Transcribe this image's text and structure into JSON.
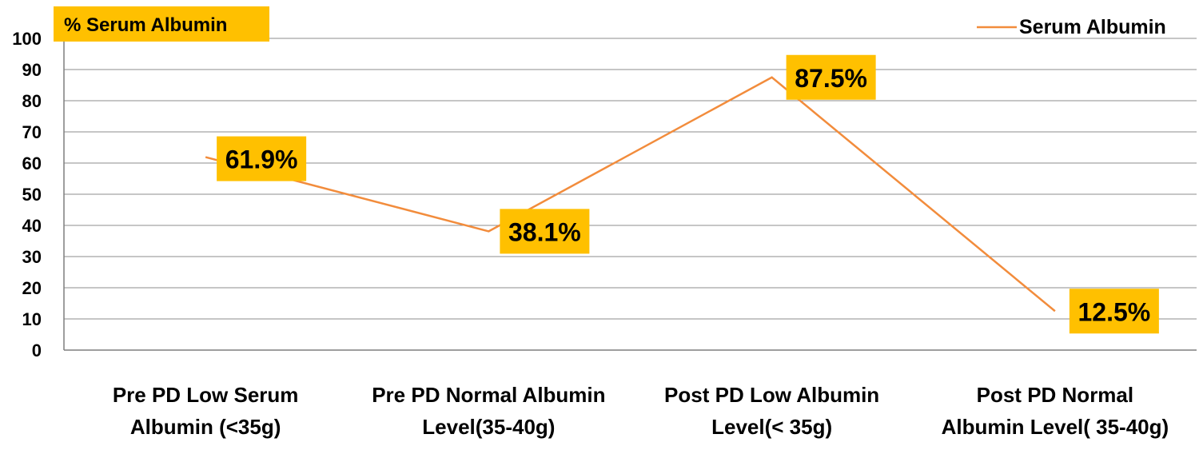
{
  "colors": {
    "line": "#F28C3C",
    "label_bg": "#FFC000",
    "grid": "#8C8C8C",
    "axis": "#7F7F7F"
  },
  "chart_data": {
    "type": "line",
    "title": "",
    "ylabel": "% Serum Albumin",
    "xlabel": "",
    "ylim": [
      0,
      100
    ],
    "yticks": [
      0,
      10,
      20,
      30,
      40,
      50,
      60,
      70,
      80,
      90,
      100
    ],
    "grid": true,
    "legend": "top-right",
    "categories": [
      [
        "Pre PD Low Serum",
        "Albumin (<35g)"
      ],
      [
        "Pre PD Normal  Albumin",
        "Level(35-40g)"
      ],
      [
        "Post PD Low Albumin",
        "Level(< 35g)"
      ],
      [
        "Post PD Normal",
        "Albumin Level( 35-40g)"
      ]
    ],
    "series": [
      {
        "name": "Serum Albumin",
        "values": [
          61.9,
          38.1,
          87.5,
          12.5
        ],
        "data_labels": [
          "61.9%",
          "38.1%",
          "87.5%",
          "12.5%"
        ]
      }
    ]
  }
}
